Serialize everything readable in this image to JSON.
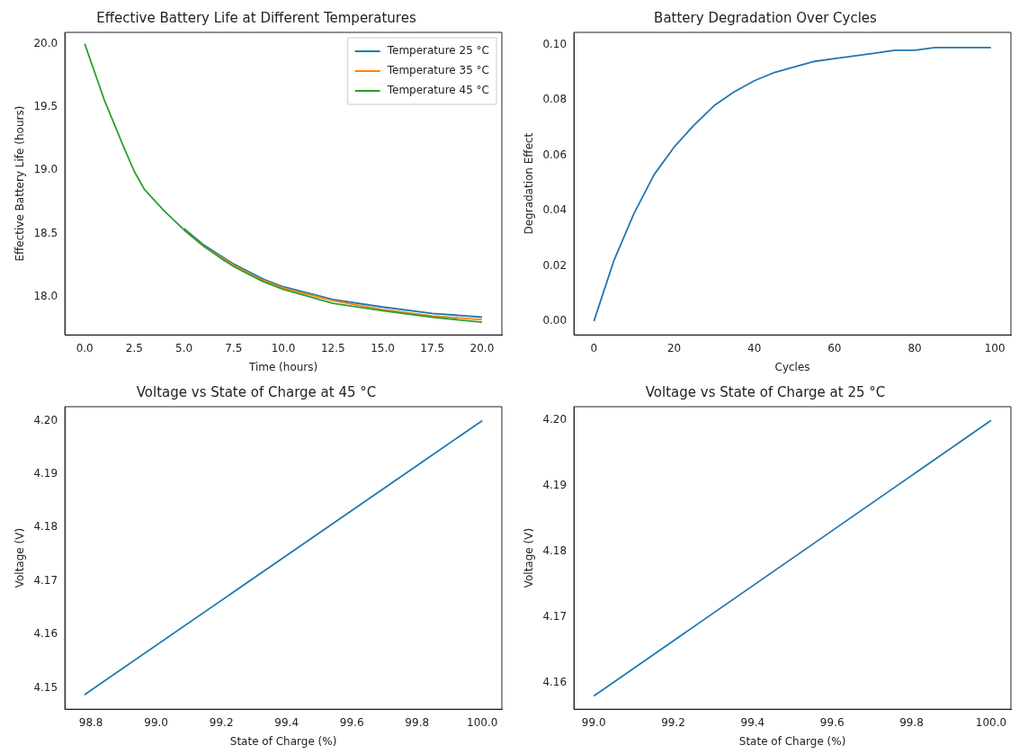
{
  "chart_data": [
    {
      "type": "line",
      "title": "Effective Battery Life at Different Temperatures",
      "xlabel": "Time (hours)",
      "ylabel": "Effective Battery Life (hours)",
      "xlim": [
        -1,
        21
      ],
      "ylim": [
        17.7,
        20.09
      ],
      "xticks": [
        {
          "value": 0,
          "label": "0.0"
        },
        2.5,
        {
          "value": 5,
          "label": "5.0"
        },
        7.5,
        {
          "value": 10,
          "label": "10.0"
        },
        12.5,
        {
          "value": 15,
          "label": "15.0"
        },
        17.5,
        {
          "value": 20,
          "label": "20.0"
        }
      ],
      "yticks": [
        {
          "value": 18,
          "label": "18.0"
        },
        18.5,
        {
          "value": 19,
          "label": "19.0"
        },
        19.5,
        {
          "value": 20,
          "label": "20.0"
        }
      ],
      "grid": false,
      "legend": "top right",
      "marker": "none",
      "line_style": "solid",
      "x": [
        0,
        1,
        2,
        2.5,
        3,
        4,
        5,
        6,
        7,
        7.5,
        8,
        9,
        10,
        12.5,
        15,
        17.5,
        20
      ],
      "series": [
        {
          "name": "Temperature 25 °C",
          "color": "#1f77b4",
          "values": [
            null,
            null,
            null,
            null,
            null,
            null,
            18.54,
            18.41,
            18.31,
            18.26,
            18.22,
            18.14,
            18.08,
            17.98,
            17.92,
            17.87,
            17.84
          ]
        },
        {
          "name": "Temperature 35 °C",
          "color": "#ff7f0e",
          "values": [
            null,
            null,
            null,
            null,
            null,
            null,
            18.53,
            18.4,
            18.3,
            18.25,
            18.21,
            18.13,
            18.07,
            17.97,
            17.9,
            17.85,
            17.82
          ]
        },
        {
          "name": "Temperature 45 °C",
          "color": "#2ca02c",
          "values": [
            20,
            19.55,
            19.17,
            18.99,
            18.85,
            18.68,
            18.53,
            18.4,
            18.29,
            18.24,
            18.2,
            18.12,
            18.06,
            17.95,
            17.89,
            17.84,
            17.8
          ]
        }
      ]
    },
    {
      "type": "line",
      "title": "Battery Degradation Over Cycles",
      "xlabel": "Cycles",
      "ylabel": "Degradation Effect",
      "xlim": [
        -5,
        104
      ],
      "ylim": [
        -0.005,
        0.1045
      ],
      "xticks": [
        0,
        20,
        40,
        60,
        80,
        100
      ],
      "yticks": [
        {
          "value": 0,
          "label": "0.00"
        },
        {
          "value": 0.02,
          "label": "0.02"
        },
        {
          "value": 0.04,
          "label": "0.04"
        },
        {
          "value": 0.06,
          "label": "0.06"
        },
        {
          "value": 0.08,
          "label": "0.08"
        },
        {
          "value": 0.1,
          "label": "0.10"
        }
      ],
      "grid": false,
      "marker": "none",
      "line_style": "solid",
      "x": [
        0,
        5,
        10,
        15,
        20,
        25,
        30,
        35,
        40,
        45,
        50,
        55,
        60,
        65,
        70,
        75,
        80,
        85,
        90,
        95,
        99
      ],
      "series": [
        {
          "color": "#1f77b4",
          "values": [
            0,
            0.022,
            0.039,
            0.053,
            0.063,
            0.071,
            0.078,
            0.083,
            0.087,
            0.09,
            0.092,
            0.094,
            0.095,
            0.096,
            0.097,
            0.098,
            0.098,
            0.099,
            0.099,
            0.099,
            0.099
          ]
        }
      ]
    },
    {
      "type": "line",
      "title": "Voltage vs State of Charge at 45 °C",
      "xlabel": "State of Charge (%)",
      "ylabel": "Voltage (V)",
      "xlim": [
        98.72,
        100.06
      ],
      "ylim": [
        4.146,
        4.2026
      ],
      "xticks": [
        98.8,
        {
          "value": 99,
          "label": "99.0"
        },
        99.2,
        99.4,
        99.6,
        99.8,
        {
          "value": 100,
          "label": "100.0"
        }
      ],
      "yticks": [
        {
          "value": 4.15,
          "label": "4.15"
        },
        4.16,
        4.17,
        4.18,
        4.19,
        {
          "value": 4.2,
          "label": "4.20"
        }
      ],
      "grid": false,
      "marker": "none",
      "line_style": "solid",
      "x": [
        98.78,
        100
      ],
      "series": [
        {
          "color": "#1f77b4",
          "values": [
            4.1487,
            4.2
          ]
        }
      ]
    },
    {
      "type": "line",
      "title": "Voltage vs State of Charge at 25 °C",
      "xlabel": "State of Charge (%)",
      "ylabel": "Voltage (V)",
      "xlim": [
        98.95,
        100.05
      ],
      "ylim": [
        4.156,
        4.2021
      ],
      "xticks": [
        {
          "value": 99,
          "label": "99.0"
        },
        99.2,
        99.4,
        99.6,
        99.8,
        {
          "value": 100,
          "label": "100.0"
        }
      ],
      "yticks": [
        4.16,
        4.17,
        4.18,
        4.19,
        {
          "value": 4.2,
          "label": "4.20"
        }
      ],
      "grid": false,
      "marker": "none",
      "line_style": "solid",
      "x": [
        99,
        100
      ],
      "series": [
        {
          "color": "#1f77b4",
          "values": [
            4.158,
            4.2
          ]
        }
      ]
    }
  ]
}
